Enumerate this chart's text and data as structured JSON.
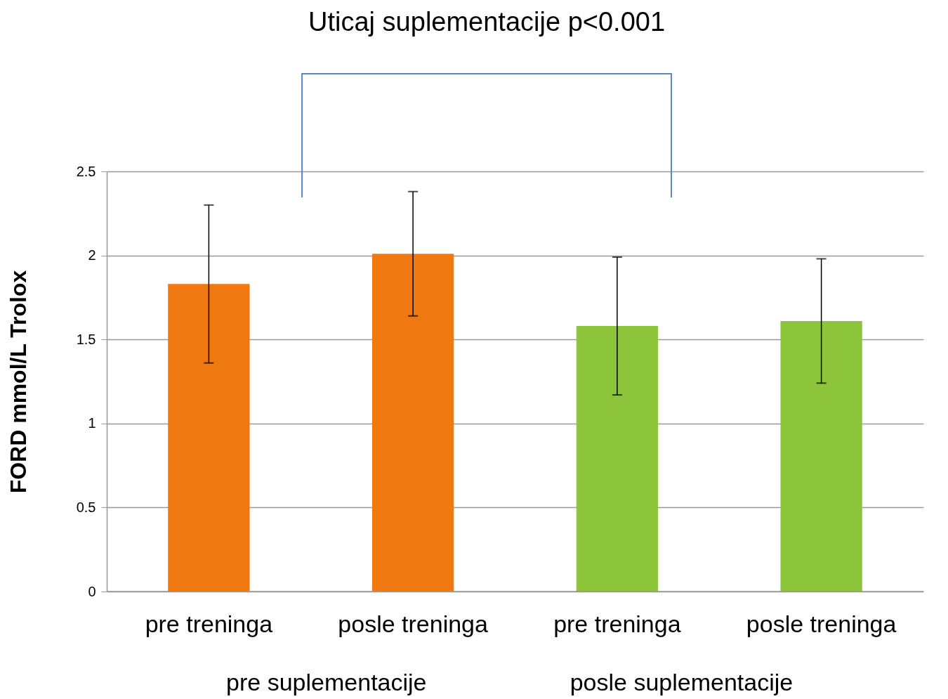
{
  "chart_data": {
    "type": "bar",
    "ylabel": "FORD  mmol/L Trolox",
    "categories": [
      "pre treninga",
      "posle treninga",
      "pre treninga",
      "posle treninga"
    ],
    "values": [
      1.83,
      2.01,
      1.58,
      1.61
    ],
    "colors": [
      "#f07810",
      "#f07810",
      "#8cc43a",
      "#8cc43a"
    ],
    "errors": [
      [
        1.36,
        2.3
      ],
      [
        1.64,
        2.38
      ],
      [
        1.17,
        1.99
      ],
      [
        1.24,
        1.98
      ]
    ],
    "ylim": [
      0,
      2.5
    ],
    "yticks": [
      0,
      0.5,
      1,
      1.5,
      2,
      2.5
    ],
    "grid": "y",
    "annotations": [
      "Uticaj suplementacije p<0.001",
      "pre suplementacije",
      "posle suplementacije"
    ]
  }
}
